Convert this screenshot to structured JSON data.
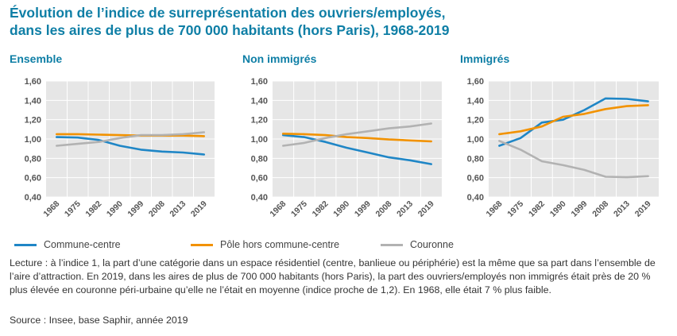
{
  "title": {
    "line1": "Évolution de l’indice de surreprésentation des ouvriers/employés,",
    "line2": "dans les aires de plus de 700 000 habitants (hors Paris), 1968-2019"
  },
  "colors": {
    "title": "#0f7fa6",
    "commune_centre": "#1f86c6",
    "pole": "#f29200",
    "couronne": "#b2b2b2",
    "panel_bg": "#e6e6e6"
  },
  "legend": [
    {
      "name": "Commune-centre",
      "color": "#1f86c6"
    },
    {
      "name": "Pôle hors commune-centre",
      "color": "#f29200"
    },
    {
      "name": "Couronne",
      "color": "#b2b2b2"
    }
  ],
  "note": "Lecture : à l’indice 1, la part d’une catégorie dans un espace résidentiel (centre, banlieue ou périphérie) est la même que sa part dans l’ensemble de l’aire d’attraction. En 2019, dans les aires de plus de 700 000 habitants (hors Paris), la part des ouvriers/employés non immigrés était près de 20 % plus élevée en couronne péri-urbaine qu’elle ne l’était en moyenne (indice proche de 1,2). En 1968, elle était 7 % plus faible.",
  "source": "Source : Insee, base Saphir, année 2019",
  "chart_data": [
    {
      "type": "line",
      "title": "Ensemble",
      "categories": [
        "1968",
        "1975",
        "1982",
        "1990",
        "1999",
        "2008",
        "2013",
        "2019"
      ],
      "ylim": [
        0.4,
        1.6
      ],
      "yticks": [
        "0,40",
        "0,60",
        "0,80",
        "1,00",
        "1,20",
        "1,40",
        "1,60"
      ],
      "ytick_values": [
        0.4,
        0.6,
        0.8,
        1.0,
        1.2,
        1.4,
        1.6
      ],
      "series": [
        {
          "name": "Commune-centre",
          "color": "#1f86c6",
          "values": [
            1.02,
            1.015,
            0.99,
            0.93,
            0.89,
            0.87,
            0.86,
            0.84
          ]
        },
        {
          "name": "Pôle hors commune-centre",
          "color": "#f29200",
          "values": [
            1.05,
            1.05,
            1.045,
            1.04,
            1.035,
            1.035,
            1.035,
            1.03
          ]
        },
        {
          "name": "Couronne",
          "color": "#b2b2b2",
          "values": [
            0.93,
            0.95,
            0.97,
            1.01,
            1.04,
            1.04,
            1.05,
            1.07
          ]
        }
      ]
    },
    {
      "type": "line",
      "title": "Non immigrés",
      "categories": [
        "1968",
        "1975",
        "1982",
        "1990",
        "1999",
        "2008",
        "2013",
        "2019"
      ],
      "ylim": [
        0.4,
        1.6
      ],
      "yticks": [
        "0,40",
        "0,60",
        "0,80",
        "1,00",
        "1,20",
        "1,40",
        "1,60"
      ],
      "ytick_values": [
        0.4,
        0.6,
        0.8,
        1.0,
        1.2,
        1.4,
        1.6
      ],
      "series": [
        {
          "name": "Commune-centre",
          "color": "#1f86c6",
          "values": [
            1.04,
            1.02,
            0.97,
            0.91,
            0.86,
            0.81,
            0.78,
            0.74
          ]
        },
        {
          "name": "Pôle hors commune-centre",
          "color": "#f29200",
          "values": [
            1.055,
            1.05,
            1.04,
            1.02,
            1.01,
            0.995,
            0.985,
            0.975
          ]
        },
        {
          "name": "Couronne",
          "color": "#b2b2b2",
          "values": [
            0.93,
            0.96,
            1.01,
            1.05,
            1.08,
            1.11,
            1.13,
            1.16
          ]
        }
      ]
    },
    {
      "type": "line",
      "title": "Immigrés",
      "categories": [
        "1968",
        "1975",
        "1982",
        "1990",
        "1999",
        "2008",
        "2013",
        "2019"
      ],
      "ylim": [
        0.4,
        1.6
      ],
      "yticks": [
        "0,40",
        "0,60",
        "0,80",
        "1,00",
        "1,20",
        "1,40",
        "1,60"
      ],
      "ytick_values": [
        0.4,
        0.6,
        0.8,
        1.0,
        1.2,
        1.4,
        1.6
      ],
      "series": [
        {
          "name": "Commune-centre",
          "color": "#1f86c6",
          "values": [
            0.93,
            1.01,
            1.17,
            1.2,
            1.3,
            1.42,
            1.415,
            1.39
          ]
        },
        {
          "name": "Pôle hors commune-centre",
          "color": "#f29200",
          "values": [
            1.05,
            1.08,
            1.13,
            1.23,
            1.26,
            1.31,
            1.34,
            1.35
          ]
        },
        {
          "name": "Couronne",
          "color": "#b2b2b2",
          "values": [
            0.98,
            0.89,
            0.77,
            0.73,
            0.68,
            0.61,
            0.605,
            0.615
          ]
        }
      ]
    }
  ]
}
